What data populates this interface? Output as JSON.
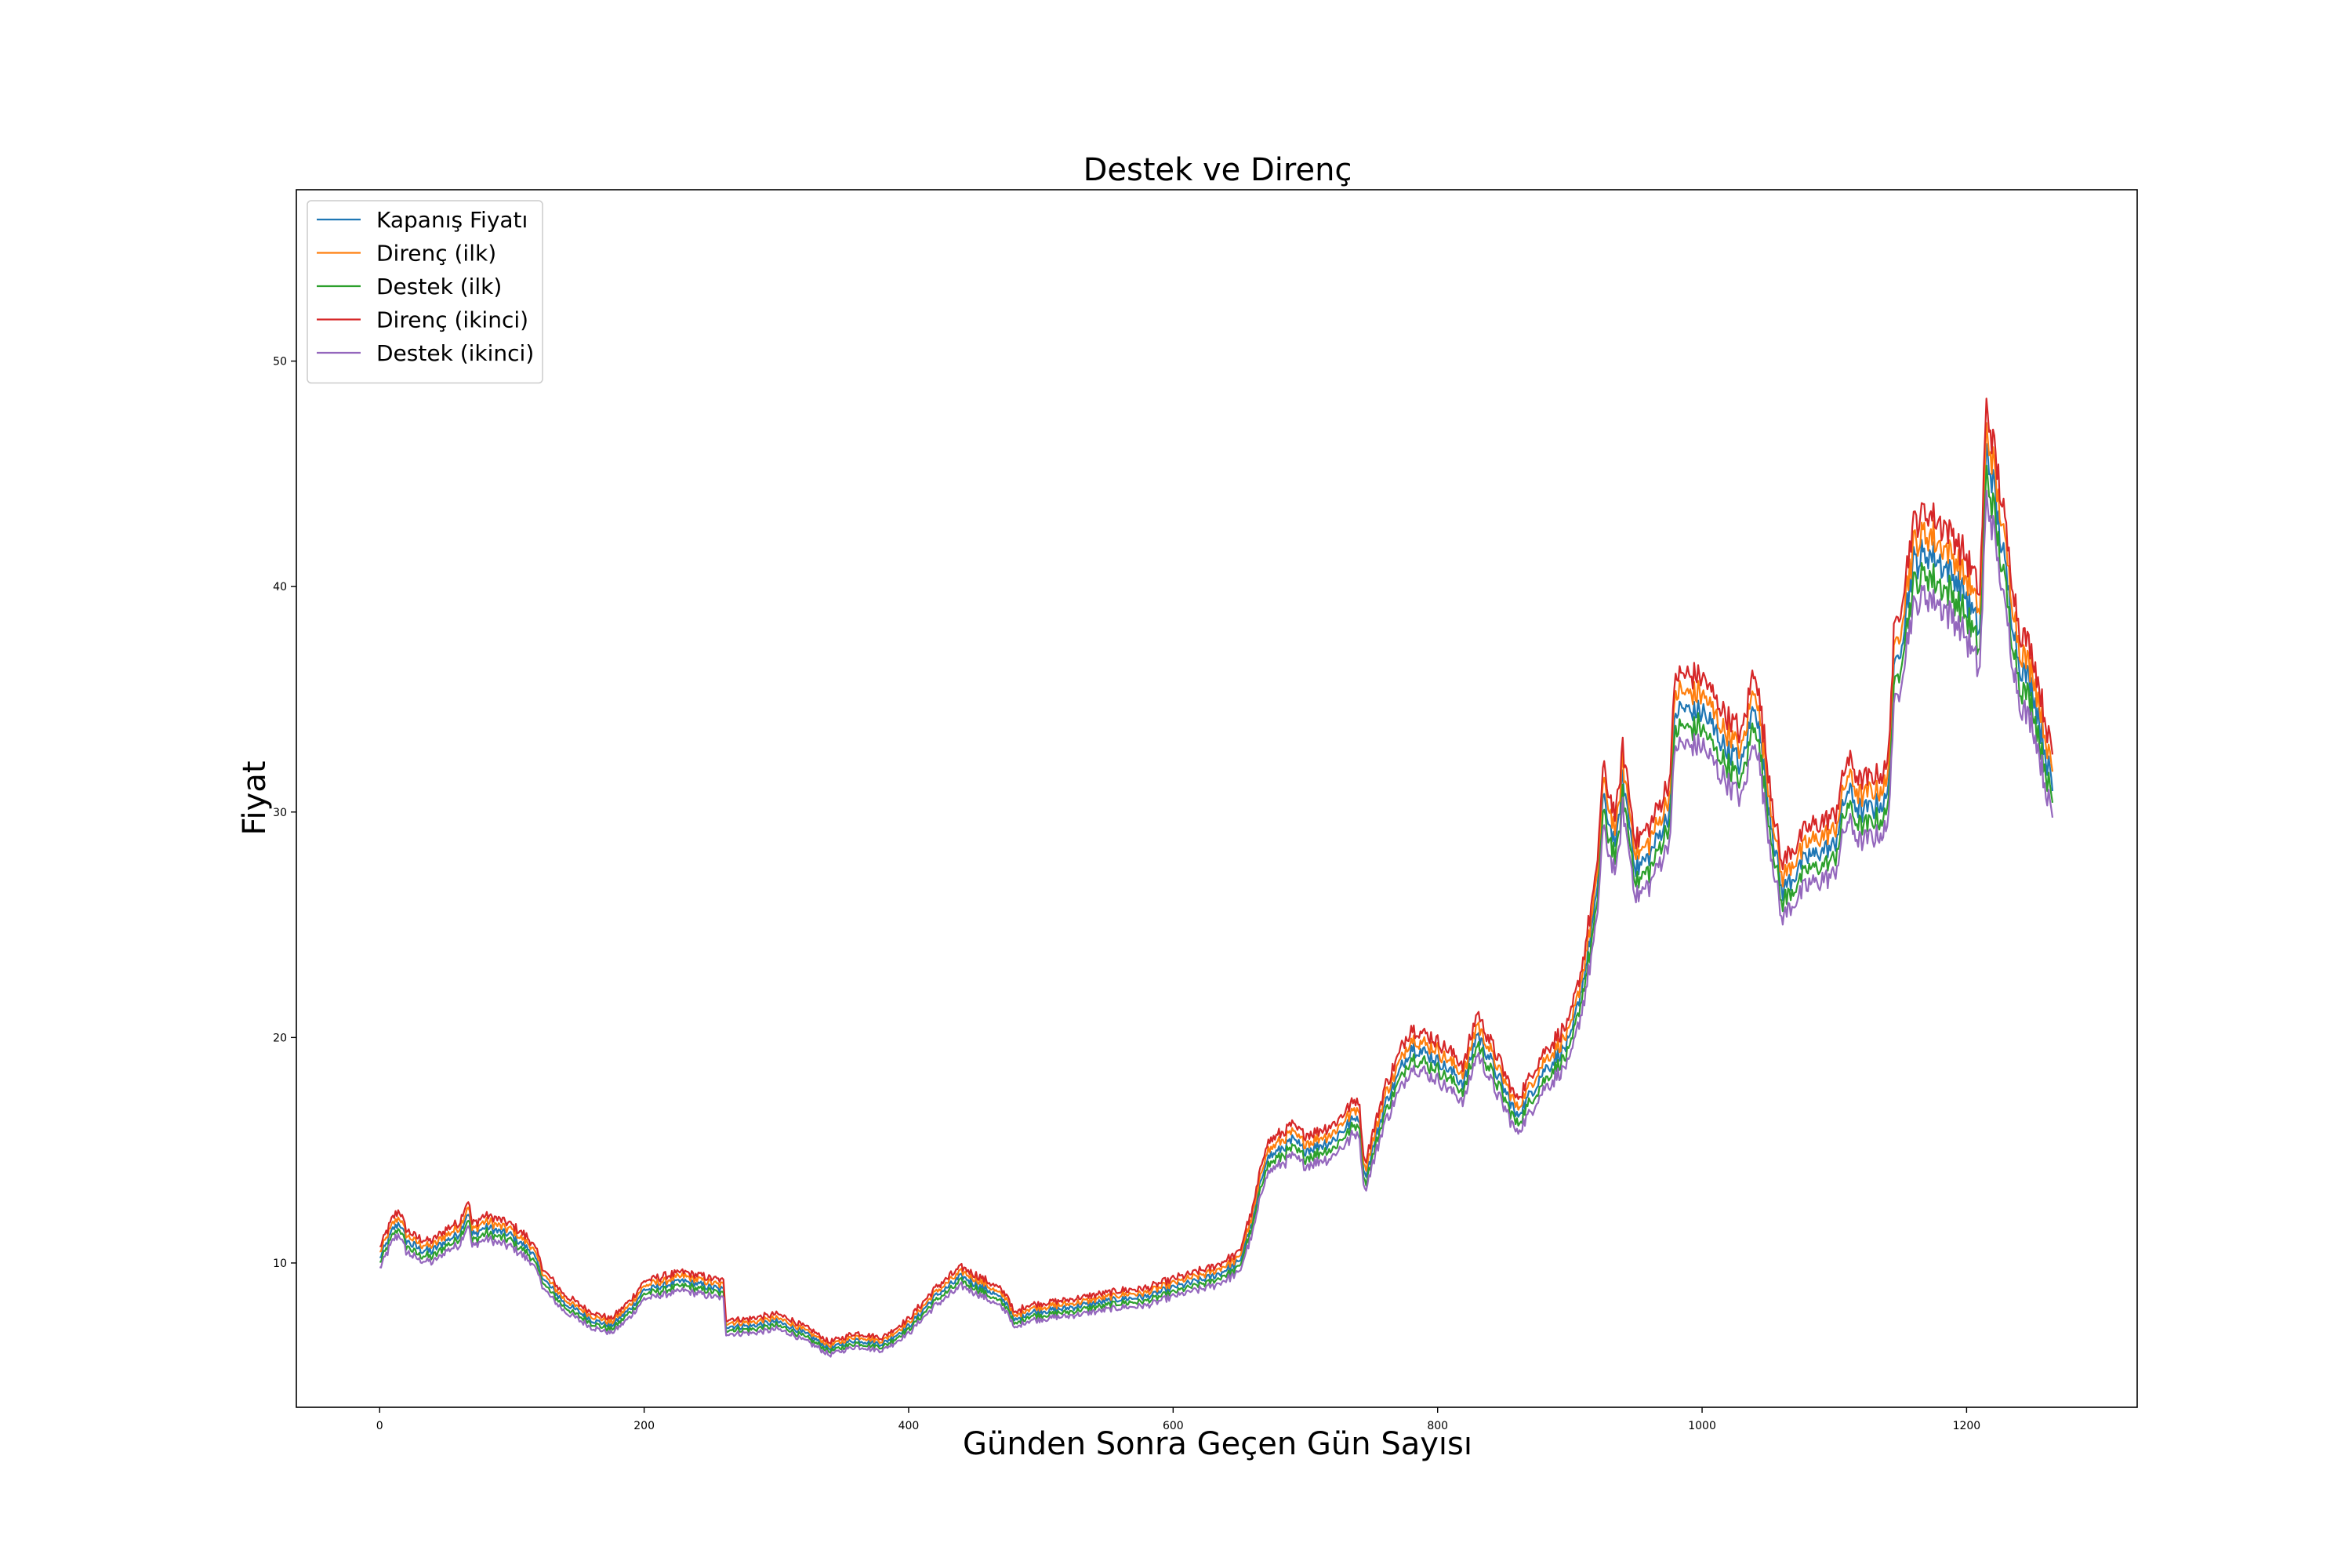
{
  "chart_data": {
    "type": "line",
    "title": "Destek ve Direnç",
    "xlabel": "Günden Sonra Geçen Gün Sayısı",
    "ylabel": "Fiyat",
    "xlim": [
      -63,
      1329
    ],
    "ylim": [
      3.6,
      57.6
    ],
    "xticks": [
      0,
      200,
      400,
      600,
      800,
      1000,
      1200
    ],
    "yticks": [
      10,
      20,
      30,
      40,
      50
    ],
    "grid": false,
    "legend_position": "top-left",
    "series": [
      {
        "name": "Kapanış Fiyatı",
        "color": "#1f77b4",
        "offset_ratio": 0.0
      },
      {
        "name": "Direnç (ilk)",
        "color": "#ff7f0e",
        "offset_ratio": 0.022
      },
      {
        "name": "Destek (ilk)",
        "color": "#2ca02c",
        "offset_ratio": -0.022
      },
      {
        "name": "Direnç (ikinci)",
        "color": "#d62728",
        "offset_ratio": 0.045
      },
      {
        "name": "Destek (ikinci)",
        "color": "#9467bd",
        "offset_ratio": -0.045
      }
    ],
    "x": [
      0,
      10,
      15,
      20,
      30,
      40,
      50,
      60,
      67,
      70,
      80,
      100,
      115,
      125,
      140,
      160,
      175,
      190,
      200,
      215,
      230,
      245,
      260,
      262,
      280,
      300,
      310,
      330,
      340,
      360,
      380,
      400,
      420,
      440,
      460,
      475,
      480,
      490,
      520,
      560,
      580,
      600,
      630,
      650,
      655,
      660,
      670,
      690,
      700,
      720,
      740,
      745,
      760,
      780,
      800,
      820,
      830,
      860,
      880,
      900,
      910,
      920,
      925,
      935,
      940,
      950,
      960,
      975,
      980,
      1000,
      1010,
      1030,
      1040,
      1050,
      1060,
      1080,
      1100,
      1110,
      1120,
      1140,
      1145,
      1150,
      1160,
      1170,
      1190,
      1200,
      1210,
      1215,
      1220,
      1240,
      1250,
      1265
    ],
    "y": [
      10.2,
      11.5,
      11.8,
      11.0,
      10.6,
      10.5,
      11.0,
      11.3,
      12.3,
      11.2,
      11.6,
      11.2,
      10.5,
      9.2,
      8.2,
      7.5,
      7.2,
      8.0,
      8.8,
      9.0,
      9.2,
      9.0,
      8.8,
      7.2,
      7.2,
      7.4,
      7.2,
      6.6,
      6.2,
      6.6,
      6.4,
      7.2,
      8.5,
      9.4,
      8.8,
      8.2,
      7.4,
      7.8,
      8.0,
      8.4,
      8.5,
      8.9,
      9.4,
      10.0,
      11.0,
      11.8,
      14.6,
      15.4,
      15.0,
      15.4,
      16.6,
      13.8,
      17.0,
      19.6,
      19.0,
      18.0,
      20.2,
      16.5,
      18.5,
      19.8,
      22.5,
      26.0,
      30.5,
      28.5,
      31.5,
      27.5,
      28.0,
      30.0,
      34.5,
      34.5,
      33.5,
      32.0,
      35.0,
      30.5,
      26.5,
      28.0,
      28.5,
      31.0,
      30.0,
      30.5,
      36.0,
      37.5,
      41.0,
      41.5,
      40.5,
      39.5,
      38.0,
      46.0,
      44.5,
      36.5,
      35.5,
      31.0
    ]
  },
  "legend": {
    "items": [
      {
        "label": "Kapanış Fiyatı",
        "color": "#1f77b4"
      },
      {
        "label": "Direnç (ilk)",
        "color": "#ff7f0e"
      },
      {
        "label": "Destek (ilk)",
        "color": "#2ca02c"
      },
      {
        "label": "Direnç (ikinci)",
        "color": "#d62728"
      },
      {
        "label": "Destek (ikinci)",
        "color": "#9467bd"
      }
    ]
  }
}
